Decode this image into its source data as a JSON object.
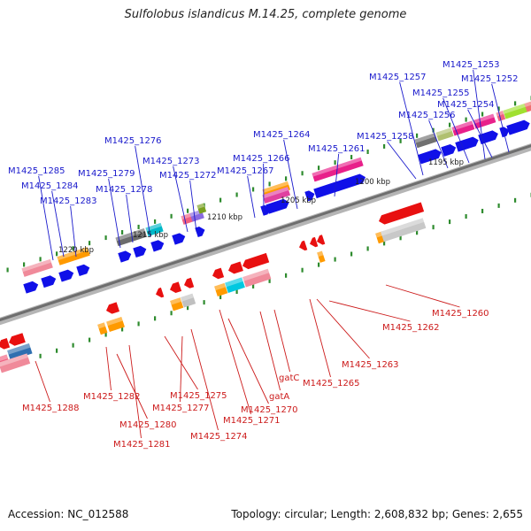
{
  "title": "Sulfolobus islandicus M.14.25, complete genome",
  "footer": {
    "accession": "Accession: NC_012588",
    "topology": "Topology: circular; Length: 2,608,832 bp; Genes: 2,655"
  },
  "colors": {
    "backbone": "#8c8c8c",
    "tick_dot": "#2e8b2e",
    "forward_label": "#1a1acc",
    "reverse_label": "#cc1a1a",
    "forward_cds": "#1010e8",
    "reverse_cds": "#e81010"
  },
  "scale_labels": [
    "1220 kbp",
    "1215 kbp",
    "1210 kbp",
    "1205 kbp",
    "1200 kbp",
    "1195 kbp"
  ],
  "forward_labels": [
    "M1425_1253",
    "M1425_1252",
    "M1425_1257",
    "M1425_1255",
    "M1425_1254",
    "M1425_1256",
    "M1425_1258",
    "M1425_1264",
    "M1425_1261",
    "M1425_1276",
    "M1425_1266",
    "M1425_1273",
    "M1425_1267",
    "M1425_1285",
    "M1425_1279",
    "M1425_1272",
    "M1425_1284",
    "M1425_1278",
    "M1425_1283"
  ],
  "reverse_labels": [
    "M1425_1260",
    "M1425_1262",
    "M1425_1263",
    "M1425_1265",
    "gatC",
    "M1425_1288",
    "M1425_1282",
    "M1425_1275",
    "gatA",
    "M1425_1277",
    "M1425_1270",
    "M1425_1271",
    "M1425_1280",
    "M1425_1274",
    "M1425_1281"
  ]
}
